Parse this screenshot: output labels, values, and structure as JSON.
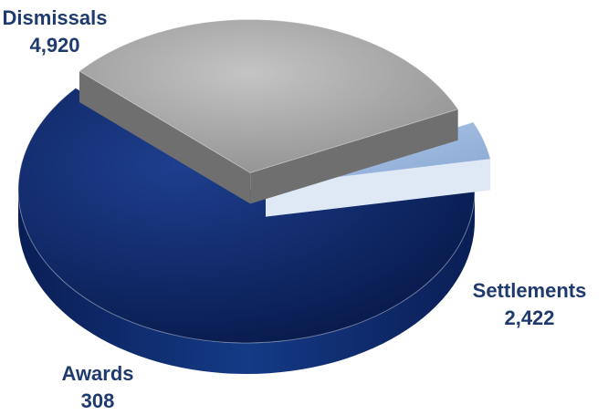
{
  "chart_data": {
    "type": "pie",
    "title": "",
    "slices": [
      {
        "label": "Dismissals",
        "value_label": "4,920",
        "value": 4920,
        "color": "#0f2a6b"
      },
      {
        "label": "Settlements",
        "value_label": "2,422",
        "value": 2422,
        "color": "#a9a9a9"
      },
      {
        "label": "Awards",
        "value_label": "308",
        "value": 308,
        "color": "#9ab6dc"
      }
    ],
    "style": "3d-exploded",
    "legend": "none",
    "label_color": "#1f3a6e"
  }
}
